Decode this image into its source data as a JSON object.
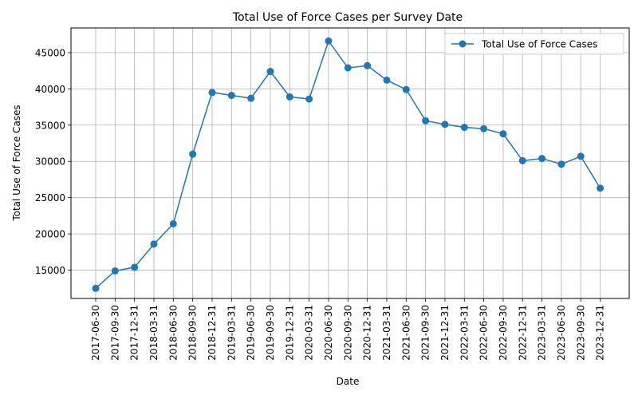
{
  "chart_data": {
    "type": "line",
    "title": "Total Use of Force Cases per Survey Date",
    "xlabel": "Date",
    "ylabel": "Total Use of Force Cases",
    "ylim": [
      11100,
      48400
    ],
    "yticks": [
      15000,
      20000,
      25000,
      30000,
      35000,
      40000,
      45000
    ],
    "grid": true,
    "legend_position": "top-right",
    "categories": [
      "2017-06-30",
      "2017-09-30",
      "2017-12-31",
      "2018-03-31",
      "2018-06-30",
      "2018-09-30",
      "2018-12-31",
      "2019-03-31",
      "2019-06-30",
      "2019-09-30",
      "2019-12-31",
      "2020-03-31",
      "2020-06-30",
      "2020-09-30",
      "2020-12-31",
      "2021-03-31",
      "2021-06-30",
      "2021-09-30",
      "2021-12-31",
      "2022-03-31",
      "2022-06-30",
      "2022-09-30",
      "2022-12-31",
      "2023-03-31",
      "2023-06-30",
      "2023-09-30",
      "2023-12-31"
    ],
    "series": [
      {
        "name": "Total Use of Force Cases",
        "color": "#1f77b4",
        "values": [
          12500,
          14900,
          15400,
          18600,
          21400,
          31000,
          39500,
          39100,
          38700,
          42400,
          38900,
          38600,
          46600,
          42900,
          43200,
          41200,
          39900,
          35600,
          35100,
          34700,
          34500,
          33800,
          30100,
          30400,
          29600,
          30700,
          26300
        ]
      }
    ]
  }
}
